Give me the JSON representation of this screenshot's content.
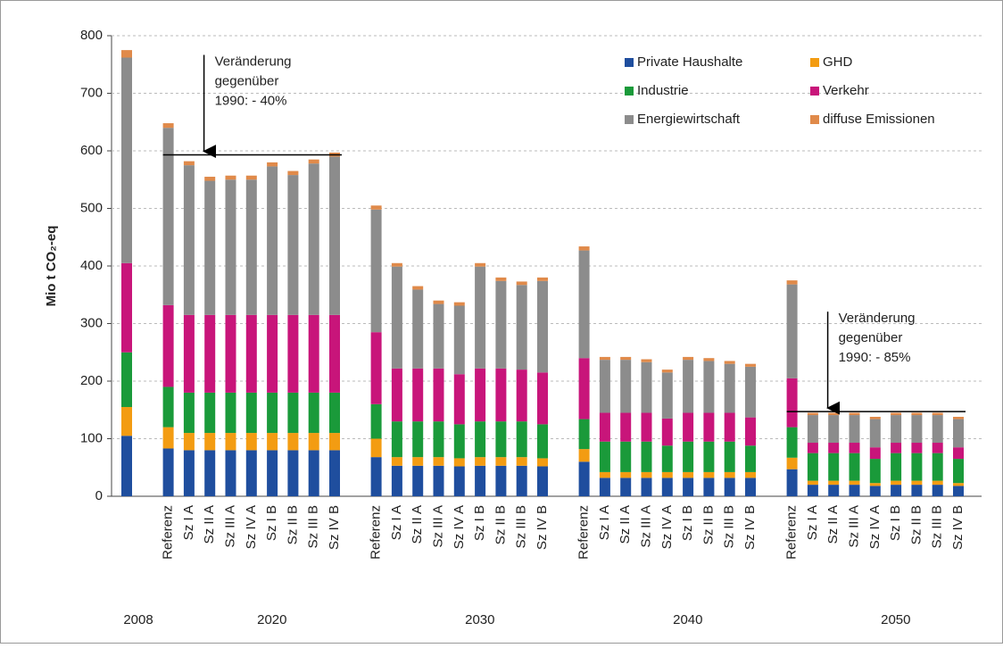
{
  "chart_data": {
    "type": "stacked_bar",
    "ylabel": "Mio t CO₂-eq",
    "ylim": [
      0,
      800
    ],
    "yticks": [
      0,
      100,
      200,
      300,
      400,
      500,
      600,
      700,
      800
    ],
    "grid": true,
    "legend": "upper right",
    "groups": [
      {
        "label": "2008",
        "categories": [
          null
        ]
      },
      {
        "label": "2020",
        "categories": [
          "Referenz",
          "Sz I A",
          "Sz II A",
          "Sz III A",
          "Sz IV A",
          "Sz I B",
          "Sz II B",
          "Sz III B",
          "Sz IV B"
        ]
      },
      {
        "label": "2030",
        "categories": [
          "Referenz",
          "Sz I A",
          "Sz II A",
          "Sz III A",
          "Sz IV A",
          "Sz I B",
          "Sz II B",
          "Sz III B",
          "Sz IV B"
        ]
      },
      {
        "label": "2040",
        "categories": [
          "Referenz",
          "Sz I A",
          "Sz II A",
          "Sz III A",
          "Sz IV A",
          "Sz I B",
          "Sz II B",
          "Sz III B",
          "Sz IV B"
        ]
      },
      {
        "label": "2050",
        "categories": [
          "Referenz",
          "Sz I A",
          "Sz II A",
          "Sz III A",
          "Sz IV A",
          "Sz I B",
          "Sz II B",
          "Sz III B",
          "Sz IV B"
        ]
      }
    ],
    "series": [
      {
        "name": "Private Haushalte",
        "color": "#1f4e9e",
        "values": [
          105,
          83,
          80,
          80,
          80,
          80,
          80,
          80,
          80,
          80,
          68,
          53,
          53,
          53,
          52,
          53,
          53,
          53,
          52,
          60,
          32,
          32,
          32,
          32,
          32,
          32,
          32,
          32,
          47,
          20,
          20,
          20,
          18,
          20,
          20,
          20,
          18
        ]
      },
      {
        "name": "GHD",
        "color": "#f39c12",
        "values": [
          50,
          37,
          30,
          30,
          30,
          30,
          30,
          30,
          30,
          30,
          32,
          15,
          15,
          15,
          14,
          15,
          15,
          15,
          14,
          22,
          10,
          10,
          10,
          10,
          10,
          10,
          10,
          10,
          20,
          7,
          7,
          7,
          5,
          7,
          7,
          7,
          5
        ]
      },
      {
        "name": "Industrie",
        "color": "#1a9a3a",
        "values": [
          95,
          70,
          70,
          70,
          70,
          70,
          70,
          70,
          70,
          70,
          60,
          62,
          62,
          62,
          59,
          62,
          62,
          62,
          59,
          52,
          53,
          53,
          53,
          46,
          53,
          53,
          53,
          46,
          53,
          48,
          48,
          48,
          42,
          48,
          48,
          48,
          42
        ]
      },
      {
        "name": "Verkehr",
        "color": "#c8157a",
        "values": [
          155,
          142,
          135,
          135,
          135,
          135,
          135,
          135,
          135,
          135,
          125,
          92,
          92,
          92,
          87,
          92,
          92,
          90,
          90,
          106,
          50,
          50,
          50,
          47,
          50,
          50,
          50,
          49,
          85,
          18,
          18,
          18,
          20,
          18,
          18,
          18,
          20
        ]
      },
      {
        "name": "Energiewirtschaft",
        "color": "#8c8c8c",
        "values": [
          357,
          308,
          260,
          233,
          235,
          235,
          258,
          243,
          263,
          275,
          213,
          177,
          137,
          112,
          119,
          177,
          152,
          147,
          159,
          187,
          92,
          92,
          88,
          80,
          92,
          90,
          85,
          88,
          163,
          48,
          48,
          48,
          49,
          48,
          48,
          48,
          49
        ]
      },
      {
        "name": "diffuse Emissionen",
        "color": "#e08a4a",
        "values": [
          13,
          8,
          7,
          7,
          7,
          7,
          7,
          7,
          7,
          7,
          7,
          6,
          6,
          6,
          6,
          6,
          6,
          6,
          6,
          7,
          5,
          5,
          5,
          5,
          5,
          5,
          5,
          5,
          7,
          4,
          4,
          4,
          4,
          4,
          4,
          4,
          4
        ]
      }
    ],
    "annotations": [
      {
        "lines": [
          "Veränderung",
          "gegenüber",
          "1990: - 40%"
        ],
        "value": 593,
        "group": 1
      },
      {
        "lines": [
          "Veränderung",
          "gegenüber",
          "1990: - 85%"
        ],
        "value": 147,
        "group": 4
      }
    ]
  }
}
